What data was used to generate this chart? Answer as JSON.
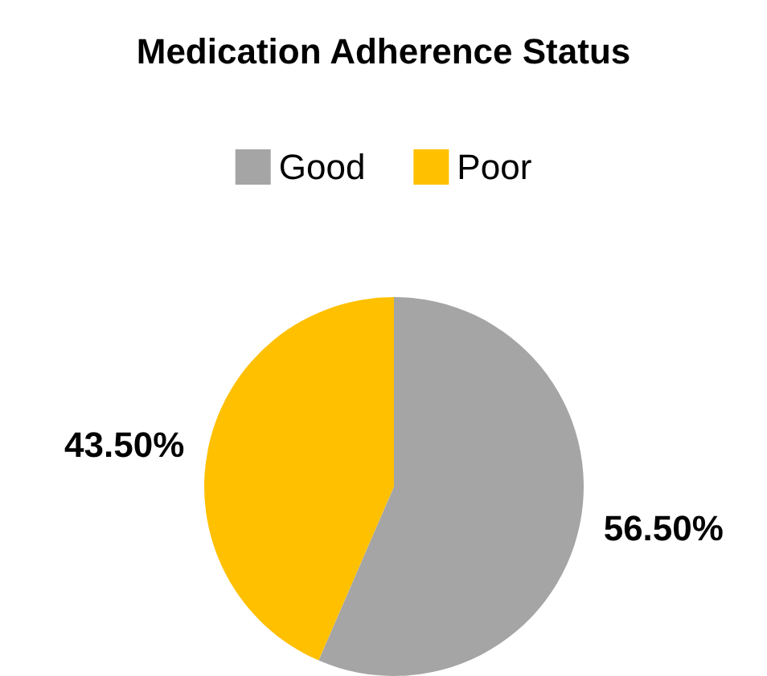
{
  "chart_data": {
    "type": "pie",
    "title": "Medication Adherence Status",
    "categories": [
      "Good",
      "Poor"
    ],
    "values": [
      56.5,
      43.5
    ],
    "colors": [
      "#a5a5a5",
      "#ffc000"
    ],
    "value_labels": [
      "56.50%",
      "43.50%"
    ],
    "legend": "top"
  }
}
